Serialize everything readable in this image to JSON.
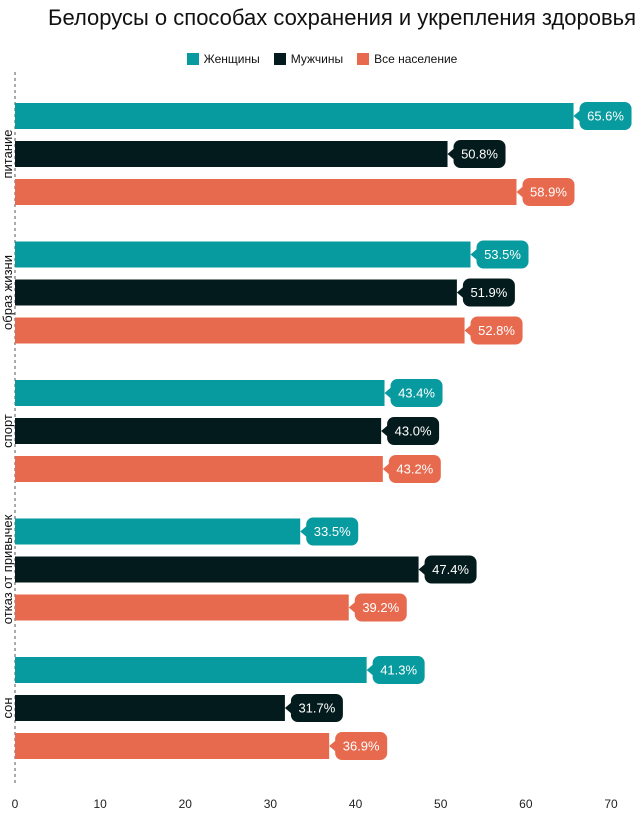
{
  "title": "Белорусы о способах сохранения и укрепления здоровья",
  "colors": {
    "women": "#079a9e",
    "men": "#041b1d",
    "all": "#e76a4e",
    "axis": "#555555",
    "label_text": "#ffffff"
  },
  "chart_data": {
    "type": "bar",
    "orientation": "horizontal",
    "title": "Белорусы о способах сохранения и укрепления здоровья",
    "categories": [
      "питание",
      "образ жизни",
      "спорт",
      "отказ от привычек",
      "сон"
    ],
    "series": [
      {
        "name": "Женщины",
        "color": "#079a9e",
        "values": [
          65.6,
          53.5,
          43.4,
          33.5,
          41.3
        ]
      },
      {
        "name": "Мужчины",
        "color": "#041b1d",
        "values": [
          50.8,
          51.9,
          43.0,
          47.4,
          31.7
        ]
      },
      {
        "name": "Все население",
        "color": "#e76a4e",
        "values": [
          58.9,
          52.8,
          43.2,
          39.2,
          36.9
        ]
      }
    ],
    "value_suffix": "%",
    "xlim": [
      0,
      70
    ],
    "xticks": [
      0,
      10,
      20,
      30,
      40,
      50,
      60,
      70
    ],
    "xlabel": "",
    "ylabel": "",
    "grid": false,
    "legend_position": "top-center"
  }
}
